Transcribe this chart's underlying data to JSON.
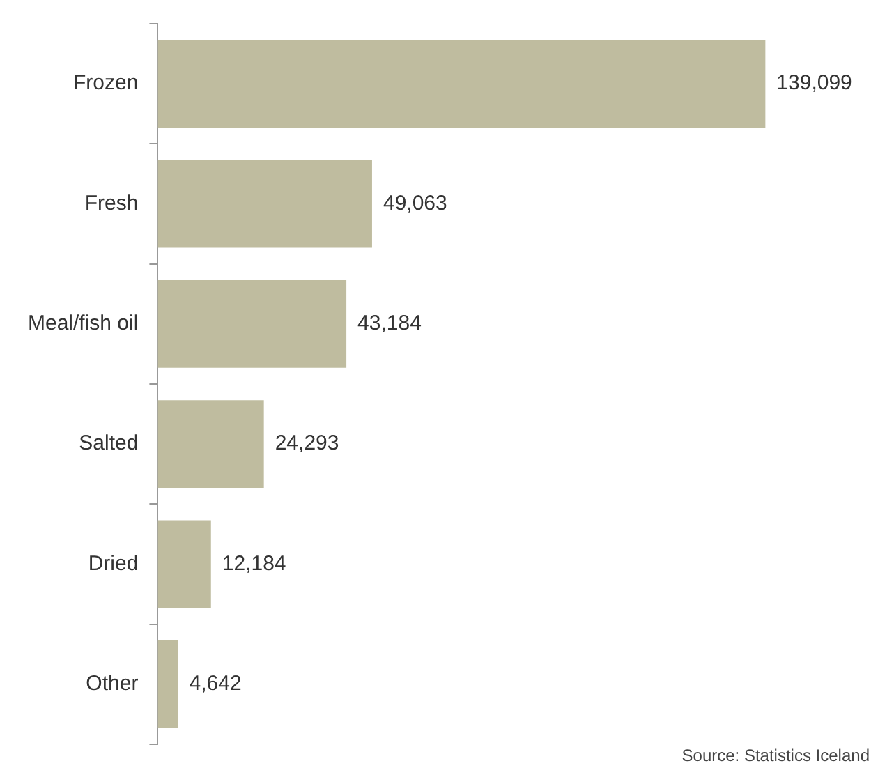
{
  "chart_data": {
    "type": "bar",
    "orientation": "horizontal",
    "tick_labels": "y",
    "data_labels": true,
    "categories": [
      "Frozen",
      "Fresh",
      "Meal/fish oil",
      "Salted",
      "Dried",
      "Other"
    ],
    "values": [
      139099,
      49063,
      43184,
      24293,
      12184,
      4642
    ],
    "color": "#bfbc9f",
    "value_labels": [
      "139,099",
      "49,063",
      "43,184",
      "24,293",
      "12,184",
      "4,642"
    ],
    "annotations": [
      "Source: Statistics Iceland"
    ]
  }
}
